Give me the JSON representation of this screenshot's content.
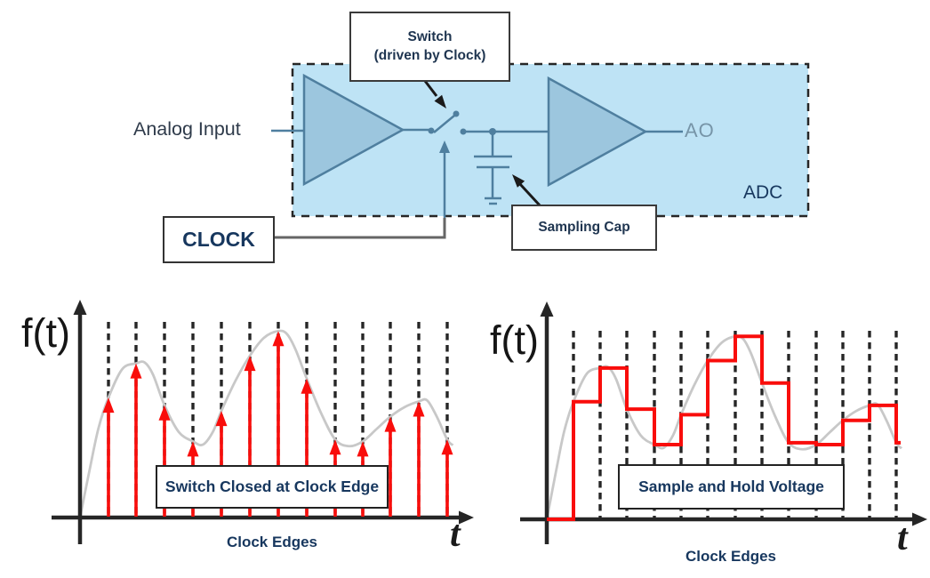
{
  "diagram": {
    "analog_input_label": "Analog Input",
    "clock_label": "CLOCK",
    "switch_callout_line1": "Switch",
    "switch_callout_line2": "(driven by Clock)",
    "sampling_cap_callout": "Sampling Cap",
    "output_label": "AO",
    "adc_label": "ADC"
  },
  "colors": {
    "adc_box_fill": "#bee3f5",
    "component_fill": "#9cc6de",
    "wire": "#4f7f9f",
    "clock_wire": "#666666",
    "ink": "#262626",
    "navy_text": "#17375e",
    "dark_text": "#2e3a4a",
    "ao_text": "#7795a8",
    "red": "#f90d0b",
    "curve_gray": "#c8c8c8",
    "callout_border": "#3a3a3a"
  },
  "chart_data": [
    {
      "type": "line",
      "subtype": "impulse-sampling",
      "annotation": "Switch Closed at Clock Edge",
      "xlabel": "Clock Edges",
      "ylabel": "f(t)",
      "x_axis_symbol": "t",
      "grid": "vertical-dashed",
      "ylim": [
        0,
        1
      ],
      "clock_edges": [
        1,
        2,
        3,
        4,
        5,
        6,
        7,
        8,
        9,
        10,
        11,
        12,
        13
      ],
      "sampled_values": [
        0.63,
        0.81,
        0.59,
        0.4,
        0.56,
        0.85,
        0.98,
        0.73,
        0.41,
        0.4,
        0.53,
        0.61,
        0.41
      ],
      "curve_points": [
        [
          0,
          0
        ],
        [
          0.35,
          0.26
        ],
        [
          0.65,
          0.47
        ],
        [
          1,
          0.63
        ],
        [
          1.5,
          0.78
        ],
        [
          2,
          0.81
        ],
        [
          2.3,
          0.815
        ],
        [
          2.6,
          0.75
        ],
        [
          3,
          0.59
        ],
        [
          3.5,
          0.45
        ],
        [
          4,
          0.4
        ],
        [
          4.35,
          0.383
        ],
        [
          4.7,
          0.45
        ],
        [
          5,
          0.56
        ],
        [
          5.5,
          0.72
        ],
        [
          6,
          0.85
        ],
        [
          6.5,
          0.945
        ],
        [
          7,
          0.98
        ],
        [
          7.3,
          0.965
        ],
        [
          7.6,
          0.885
        ],
        [
          8,
          0.73
        ],
        [
          8.5,
          0.55
        ],
        [
          9,
          0.41
        ],
        [
          9.5,
          0.375
        ],
        [
          10,
          0.4
        ],
        [
          10.5,
          0.465
        ],
        [
          11,
          0.53
        ],
        [
          11.5,
          0.58
        ],
        [
          12,
          0.61
        ],
        [
          12.3,
          0.615
        ],
        [
          12.65,
          0.525
        ],
        [
          13,
          0.41
        ],
        [
          13.2,
          0.38
        ]
      ]
    },
    {
      "type": "line",
      "subtype": "sample-and-hold",
      "annotation": "Sample and Hold Voltage",
      "xlabel": "Clock Edges",
      "ylabel": "f(t)",
      "x_axis_symbol": "t",
      "grid": "vertical-dashed",
      "ylim": [
        0,
        1
      ],
      "clock_edges": [
        1,
        2,
        3,
        4,
        5,
        6,
        7,
        8,
        9,
        10,
        11,
        12,
        13
      ],
      "sampled_values": [
        0.63,
        0.81,
        0.59,
        0.4,
        0.56,
        0.85,
        0.98,
        0.73,
        0.41,
        0.4,
        0.53,
        0.61,
        0.41
      ],
      "curve_points": [
        [
          0,
          0
        ],
        [
          0.35,
          0.26
        ],
        [
          0.65,
          0.47
        ],
        [
          1,
          0.63
        ],
        [
          1.5,
          0.78
        ],
        [
          2,
          0.81
        ],
        [
          2.3,
          0.815
        ],
        [
          2.6,
          0.75
        ],
        [
          3,
          0.59
        ],
        [
          3.5,
          0.45
        ],
        [
          4,
          0.4
        ],
        [
          4.35,
          0.383
        ],
        [
          4.7,
          0.45
        ],
        [
          5,
          0.56
        ],
        [
          5.5,
          0.72
        ],
        [
          6,
          0.85
        ],
        [
          6.5,
          0.945
        ],
        [
          7,
          0.98
        ],
        [
          7.3,
          0.965
        ],
        [
          7.6,
          0.885
        ],
        [
          8,
          0.73
        ],
        [
          8.5,
          0.55
        ],
        [
          9,
          0.41
        ],
        [
          9.5,
          0.375
        ],
        [
          10,
          0.4
        ],
        [
          10.5,
          0.465
        ],
        [
          11,
          0.53
        ],
        [
          11.5,
          0.58
        ],
        [
          12,
          0.61
        ],
        [
          12.3,
          0.615
        ],
        [
          12.65,
          0.525
        ],
        [
          13,
          0.41
        ],
        [
          13.2,
          0.38
        ]
      ]
    }
  ]
}
